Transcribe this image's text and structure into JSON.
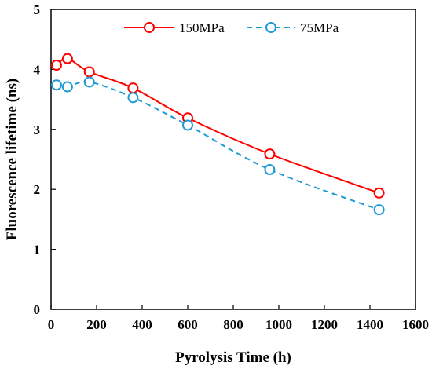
{
  "chart_data": {
    "type": "line",
    "title": "",
    "xlabel": "Pyrolysis Time (h)",
    "ylabel": "Fluorescence lifetime (ns)",
    "xlim": [
      0,
      1600
    ],
    "ylim": [
      0,
      5
    ],
    "xticks": [
      0,
      200,
      400,
      600,
      800,
      1000,
      1200,
      1400,
      1600
    ],
    "yticks": [
      0,
      1,
      2,
      3,
      4,
      5
    ],
    "grid": false,
    "legend": "top-right",
    "series": [
      {
        "name": "150MPa",
        "color": "#ff0000",
        "line_style": "solid",
        "marker": "circle-open",
        "x": [
          24,
          72,
          168,
          360,
          600,
          960,
          1440
        ],
        "y": [
          4.07,
          4.18,
          3.96,
          3.69,
          3.19,
          2.59,
          1.94
        ]
      },
      {
        "name": "75MPa",
        "color": "#1f9ad6",
        "line_style": "dashed",
        "marker": "circle-open",
        "x": [
          24,
          72,
          168,
          360,
          600,
          960,
          1440
        ],
        "y": [
          3.74,
          3.71,
          3.79,
          3.53,
          3.07,
          2.33,
          1.66
        ]
      }
    ]
  }
}
